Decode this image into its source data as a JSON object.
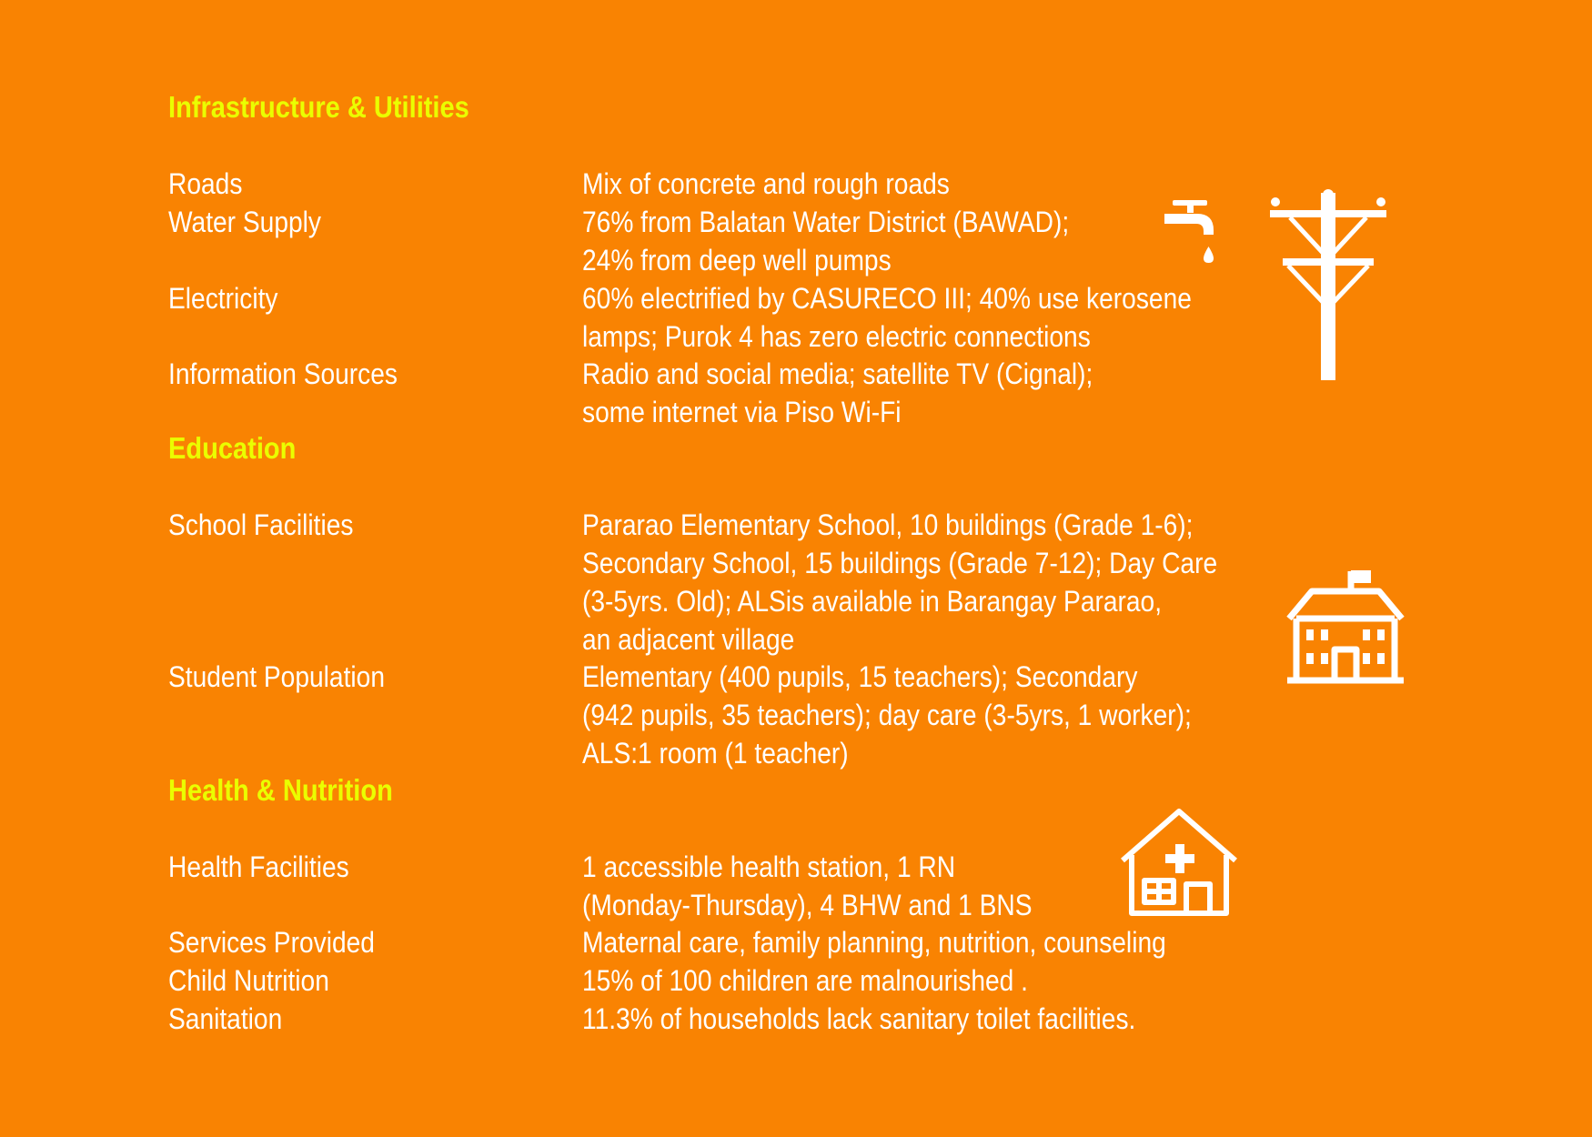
{
  "sections": [
    {
      "heading": "Infrastructure & Utilities",
      "rows": [
        {
          "label": "Roads",
          "lines": [
            "Mix of concrete and rough roads"
          ]
        },
        {
          "label": "Water Supply",
          "lines": [
            "76% from Balatan Water District (BAWAD);",
            "24% from deep well pumps"
          ]
        },
        {
          "label": "Electricity",
          "lines": [
            "60% electrified by CASURECO III; 40% use kerosene",
            "lamps; Purok 4 has zero electric connections"
          ]
        },
        {
          "label": "Information Sources",
          "lines": [
            "Radio and social media; satellite TV (Cignal);",
            "some internet via Piso Wi-Fi"
          ]
        }
      ]
    },
    {
      "heading": "Education",
      "rows": [
        {
          "label": "School Facilities",
          "lines": [
            "Pararao Elementary School, 10 buildings (Grade 1-6);",
            "Secondary School, 15 buildings (Grade 7-12); Day Care",
            "(3-5yrs. Old); ALSis available in Barangay Pararao,",
            "an adjacent village"
          ]
        },
        {
          "label": "Student Population",
          "lines": [
            "Elementary (400 pupils, 15 teachers); Secondary",
            "(942 pupils, 35 teachers); day care (3-5yrs, 1 worker);",
            "ALS:1 room (1 teacher)"
          ]
        }
      ]
    },
    {
      "heading": "Health & Nutrition",
      "rows": [
        {
          "label": "Health Facilities",
          "lines": [
            "1 accessible health station, 1 RN",
            "(Monday-Thursday), 4 BHW and 1 BNS"
          ]
        },
        {
          "label": "Services Provided",
          "lines": [
            "Maternal care, family planning, nutrition, counseling"
          ]
        },
        {
          "label": "Child Nutrition",
          "lines": [
            "15% of 100 children are malnourished ."
          ]
        },
        {
          "label": "Sanitation",
          "lines": [
            "11.3% of households lack sanitary toilet facilities."
          ]
        }
      ]
    }
  ],
  "icons": [
    "water-tap-icon",
    "power-pole-icon",
    "school-building-icon",
    "health-station-icon"
  ],
  "colors": {
    "background": "#f98302",
    "heading": "#eaff00",
    "text": "#ffffff"
  }
}
